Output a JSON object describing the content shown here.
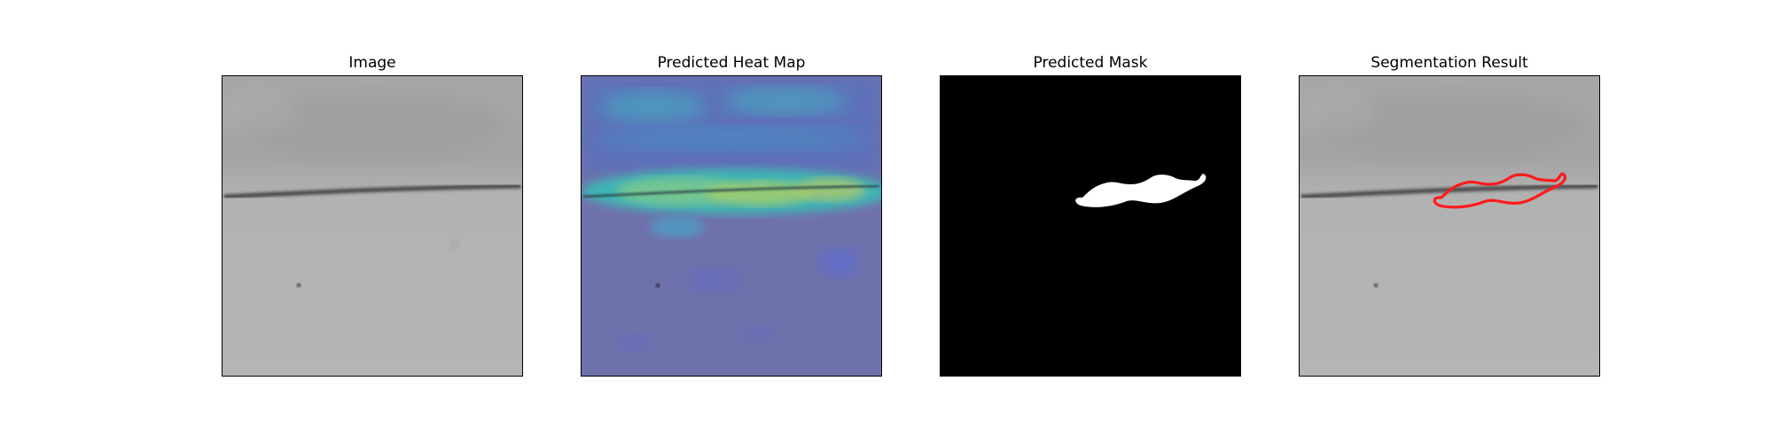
{
  "panels": [
    {
      "title": "Image"
    },
    {
      "title": "Predicted Heat Map"
    },
    {
      "title": "Predicted Mask"
    },
    {
      "title": "Segmentation Result"
    }
  ],
  "colors": {
    "background": "#ffffff",
    "frame_border": "#000000",
    "mask_foreground": "#ffffff",
    "mask_background": "#000000",
    "contour": "#ff1a1a"
  }
}
